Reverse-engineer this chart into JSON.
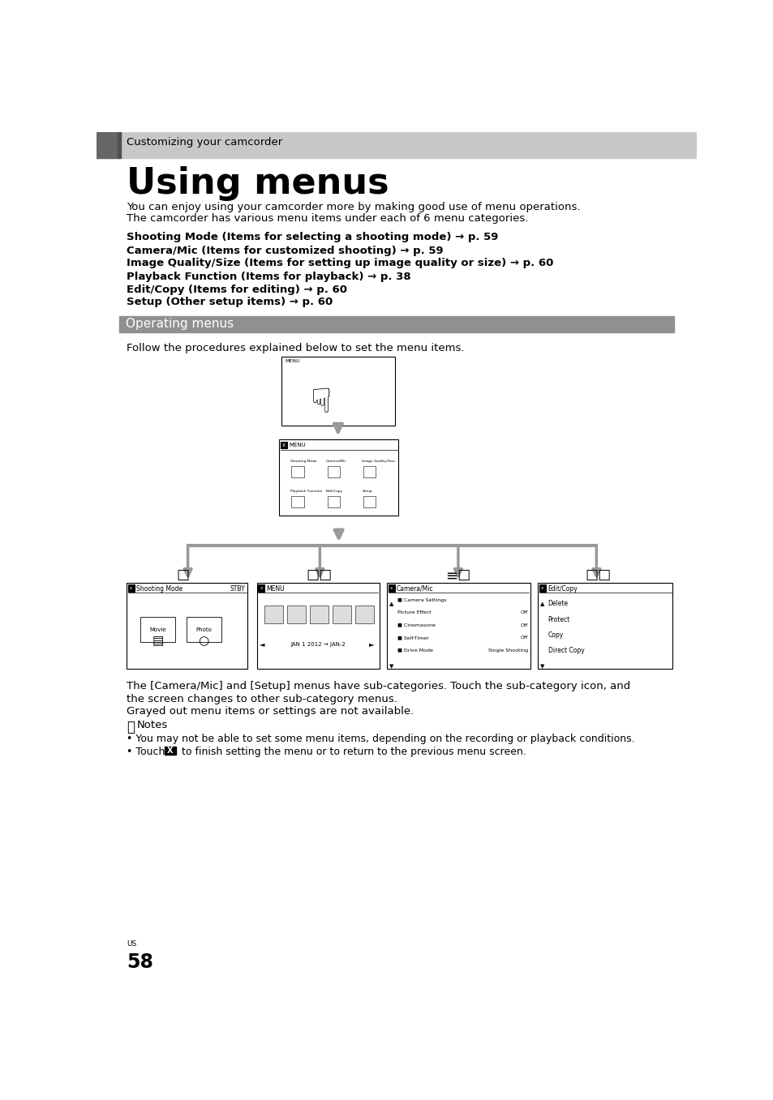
{
  "page_bg": "#ffffff",
  "header_bg": "#c8c8c8",
  "header_bar_dark": "#505050",
  "section_bg": "#909090",
  "section_text_color": "#ffffff",
  "body_text_color": "#000000",
  "title_small": "Customizing your camcorder",
  "title_large": "Using menus",
  "intro_line1": "You can enjoy using your camcorder more by making good use of menu operations.",
  "intro_line2": "The camcorder has various menu items under each of 6 menu categories.",
  "menu_items_bold": [
    "Shooting Mode (Items for selecting a shooting mode) → p. 59",
    "Camera/Mic (Items for customized shooting) → p. 59",
    "Image Quality/Size (Items for setting up image quality or size) → p. 60",
    "Playback Function (Items for playback) → p. 38",
    "Edit/Copy (Items for editing) → p. 60",
    "Setup (Other setup items) → p. 60"
  ],
  "section_title": "Operating menus",
  "follow_text": "Follow the procedures explained below to set the menu items.",
  "body_text2_line1": "The [Camera/Mic] and [Setup] menus have sub-categories. Touch the sub-category icon, and",
  "body_text2_line2": "the screen changes to other sub-category menus.",
  "body_text2_line3": "Grayed out menu items or settings are not available.",
  "notes_title": "Notes",
  "note1": "You may not be able to set some menu items, depending on the recording or playback conditions.",
  "note2": "to finish setting the menu or to return to the previous menu screen.",
  "arrow_color": "#999999",
  "page_num": "58",
  "page_country": "US"
}
